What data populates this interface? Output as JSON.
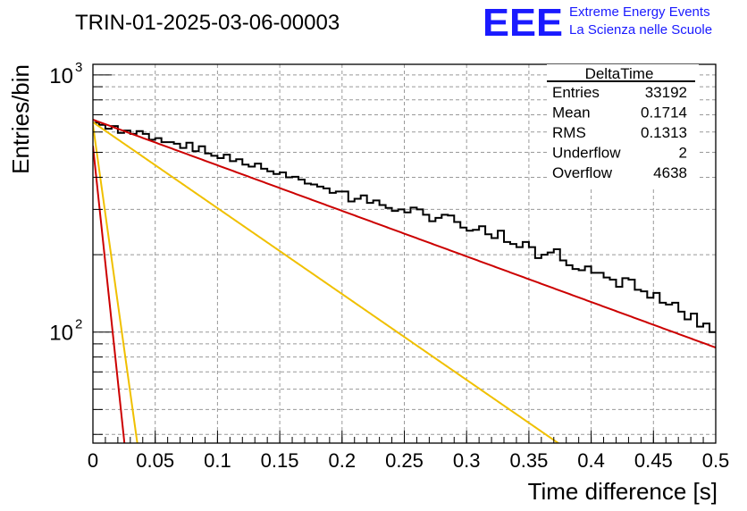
{
  "header": {
    "run_title": "TRIN-01-2025-03-06-00003",
    "logo_text": "EEE",
    "brand_line1": "Extreme Energy Events",
    "brand_line2": "La Scienza nelle Scuole",
    "brand_color": "#1a1aff"
  },
  "stats_box": {
    "title": "DeltaTime",
    "rows": [
      {
        "label": "Entries",
        "value": "33192"
      },
      {
        "label": "Mean",
        "value": "0.1714"
      },
      {
        "label": "RMS",
        "value": "0.1313"
      },
      {
        "label": "Underflow",
        "value": "2"
      },
      {
        "label": "Overflow",
        "value": "4638"
      }
    ]
  },
  "chart_data": {
    "type": "histogram",
    "xlabel": "Time difference [s]",
    "ylabel": "Entries/bin",
    "xlim": [
      0,
      0.5
    ],
    "ylim": [
      37,
      1100
    ],
    "y_scale": "log",
    "grid": true,
    "x_ticks": [
      "0",
      "0.05",
      "0.1",
      "0.15",
      "0.2",
      "0.25",
      "0.3",
      "0.35",
      "0.4",
      "0.45",
      "0.5"
    ],
    "y_ticks": [
      {
        "value": 100,
        "label": "10",
        "exp": "2"
      },
      {
        "value": 1000,
        "label": "10",
        "exp": "3"
      }
    ],
    "bin_width": 0.005,
    "histogram_color": "#000000",
    "histogram_counts": [
      652,
      640,
      618,
      633,
      595,
      608,
      590,
      605,
      590,
      560,
      568,
      548,
      548,
      540,
      520,
      545,
      505,
      528,
      495,
      485,
      475,
      490,
      462,
      470,
      448,
      440,
      452,
      432,
      422,
      412,
      418,
      400,
      402,
      392,
      378,
      375,
      368,
      362,
      348,
      352,
      352,
      322,
      330,
      340,
      318,
      325,
      312,
      304,
      296,
      300,
      292,
      305,
      300,
      286,
      270,
      278,
      286,
      284,
      268,
      255,
      248,
      250,
      258,
      240,
      232,
      248,
      224,
      220,
      214,
      224,
      214,
      194,
      200,
      204,
      210,
      190,
      182,
      176,
      174,
      180,
      170,
      170,
      163,
      160,
      150,
      162,
      160,
      146,
      144,
      136,
      142,
      130,
      128,
      130,
      120,
      112,
      118,
      105,
      108,
      100
    ],
    "fit_functions": [
      {
        "amplitude": 670,
        "tau": 0.245,
        "color": "#cc0000"
      },
      {
        "amplitude": 655,
        "tau": 0.13,
        "color": "#f0c000"
      },
      {
        "amplitude": 530,
        "tau": 0.0095,
        "color": "#cc0000"
      },
      {
        "amplitude": 640,
        "tau": 0.0125,
        "color": "#f0c000"
      }
    ]
  }
}
